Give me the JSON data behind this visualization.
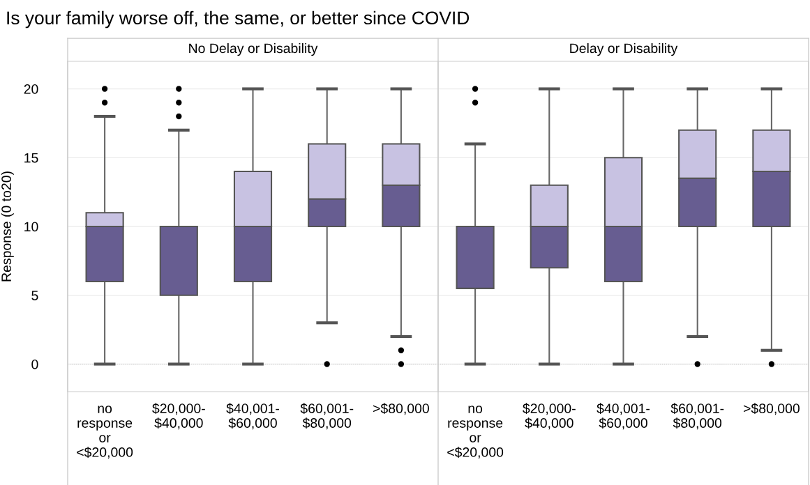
{
  "chart_data": [
    {
      "type": "box",
      "title": "Is your family worse off, the same, or better since COVID",
      "subtitle": "No Delay or Disability",
      "ylabel": "Response (0 to20)",
      "categories": [
        "no\nresponse\nor\n<$20,000",
        "$20,000-\n$40,000",
        "$40,001-\n$60,000",
        "$60,001-\n$80,000",
        ">$80,000"
      ],
      "series": [
        {
          "color": "#c8c2e2",
          "colors": [
            "#675d91",
            "#675d91",
            "#675d91",
            "#675d91",
            "#675d91"
          ],
          "boxes": [
            {
              "low": 0,
              "q1": 6,
              "median": 10,
              "q3": 11,
              "high": 18,
              "outliers": [
                19,
                20
              ]
            },
            {
              "low": 0,
              "q1": 5,
              "median": 10,
              "q3": 10,
              "high": 17,
              "outliers": [
                18,
                19,
                20
              ]
            },
            {
              "low": 0,
              "q1": 6,
              "median": 10,
              "q3": 14,
              "high": 20
            },
            {
              "low": 3,
              "q1": 10,
              "median": 12,
              "q3": 16,
              "high": 20,
              "outliers": [
                0
              ]
            },
            {
              "low": 2,
              "q1": 10,
              "median": 13,
              "q3": 16,
              "high": 20,
              "outliers": [
                0,
                1
              ]
            }
          ]
        }
      ],
      "ylim": [
        -2,
        22
      ],
      "yticks": [
        0,
        5,
        10,
        15,
        20
      ],
      "grid": "y",
      "ref_lines": [
        {
          "axis": "y",
          "value": 0,
          "color": "#bbbbbb",
          "line_style": "dotted"
        }
      ]
    },
    {
      "type": "box",
      "subtitle": "Delay or Disability",
      "categories": [
        "no\nresponse\nor\n<$20,000",
        "$20,000-\n$40,000",
        "$40,001-\n$60,000",
        "$60,001-\n$80,000",
        ">$80,000"
      ],
      "series": [
        {
          "color": "#c8c2e2",
          "colors": [
            "#675d91",
            "#675d91",
            "#675d91",
            "#675d91",
            "#675d91"
          ],
          "boxes": [
            {
              "low": 0,
              "q1": 5.5,
              "median": 10,
              "q3": 10,
              "high": 16,
              "outliers": [
                19,
                20
              ]
            },
            {
              "low": 0,
              "q1": 7,
              "median": 10,
              "q3": 13,
              "high": 20
            },
            {
              "low": 0,
              "q1": 6,
              "median": 10,
              "q3": 15,
              "high": 20
            },
            {
              "low": 2,
              "q1": 10,
              "median": 13.5,
              "q3": 17,
              "high": 20,
              "outliers": [
                0
              ]
            },
            {
              "low": 1,
              "q1": 10,
              "median": 14,
              "q3": 17,
              "high": 20,
              "outliers": [
                0
              ]
            }
          ]
        }
      ],
      "ylim": [
        -2,
        22
      ],
      "yticks": [
        0,
        5,
        10,
        15,
        20
      ],
      "grid": "y",
      "tick_labels": "x",
      "ref_lines": [
        {
          "axis": "y",
          "value": 0,
          "color": "#bbbbbb",
          "line_style": "dotted"
        }
      ]
    }
  ]
}
